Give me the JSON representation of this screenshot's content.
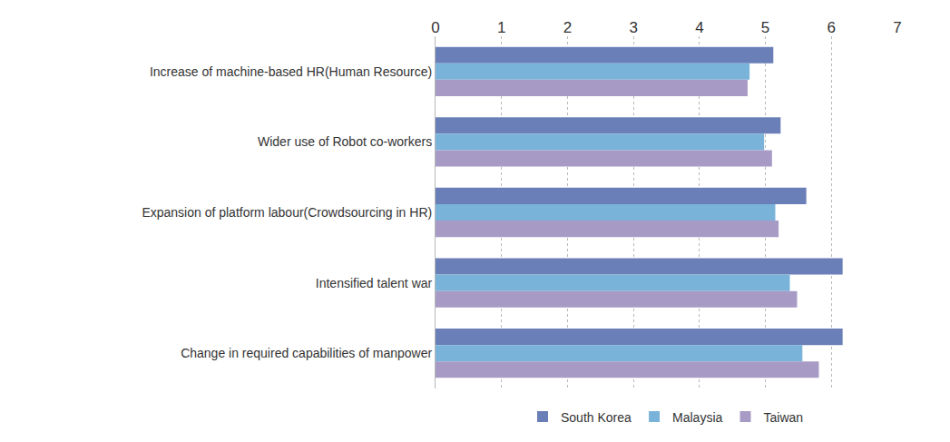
{
  "chart_data": {
    "type": "bar",
    "orientation": "horizontal",
    "categories": [
      "Increase of machine-based HR(Human Resource)",
      "Wider use of Robot co-workers",
      "Expansion of platform labour(Crowdsourcing in HR)",
      "Intensified talent war",
      "Change in required capabilities of manpower"
    ],
    "series": [
      {
        "name": "South Korea",
        "color": "#6a7fb8",
        "values": [
          5.12,
          5.23,
          5.62,
          6.17,
          6.17
        ]
      },
      {
        "name": "Malaysia",
        "color": "#7ab3d9",
        "values": [
          4.76,
          4.98,
          5.15,
          5.37,
          5.56
        ]
      },
      {
        "name": "Taiwan",
        "color": "#a79bc6",
        "values": [
          4.73,
          5.1,
          5.2,
          5.48,
          5.81
        ]
      }
    ],
    "xlim": [
      0,
      7
    ],
    "xticks": [
      0,
      1,
      2,
      3,
      4,
      5,
      6,
      7
    ],
    "grid": true,
    "legend": "bottom"
  }
}
